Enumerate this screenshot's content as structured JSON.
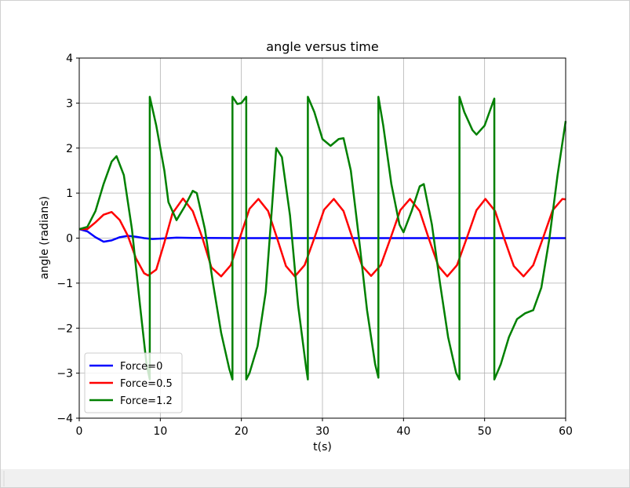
{
  "chart_data": {
    "type": "line",
    "title": "angle versus time",
    "x_label": "t(s)",
    "y_label": "angle (radians)",
    "xlim": [
      0,
      60
    ],
    "xticks": [
      0,
      10,
      20,
      30,
      40,
      50,
      60
    ],
    "ylim": [
      -4,
      4
    ],
    "yticks": [
      {
        "value": -4,
        "label": "−4"
      },
      {
        "value": -3,
        "label": "−3"
      },
      {
        "value": -2,
        "label": "−2"
      },
      {
        "value": -1,
        "label": "−1"
      },
      0,
      1,
      2,
      3,
      4
    ],
    "grid": true,
    "legend": "lower left",
    "series": [
      {
        "name": "Force=0",
        "color": "#0000ff",
        "x": [
          0,
          1,
          2,
          3,
          4,
          5,
          6,
          7,
          8,
          9,
          10,
          12,
          14,
          20,
          40,
          60
        ],
        "values": [
          0.2,
          0.15,
          0.02,
          -0.08,
          -0.05,
          0.02,
          0.05,
          0.03,
          0,
          -0.02,
          -0.01,
          0.01,
          0.005,
          0,
          0,
          0
        ]
      },
      {
        "name": "Force=0.5",
        "color": "#ff0000",
        "x": [
          0,
          1,
          2,
          3,
          4,
          5,
          6,
          7,
          8,
          8.5,
          9.5,
          10.5,
          11.5,
          12.8,
          14,
          15.2,
          16.3,
          17.5,
          18.7,
          19.8,
          21,
          22.1,
          23.3,
          24.4,
          25.5,
          26.6,
          27.8,
          29,
          30.2,
          31.4,
          32.6,
          33.7,
          34.9,
          36,
          37.2,
          38.4,
          39.6,
          40.8,
          42,
          43.1,
          44.3,
          45.4,
          46.6,
          47.8,
          49,
          50.1,
          51.3,
          52.4,
          53.6,
          54.8,
          56,
          57.2,
          58.4,
          59.6,
          60
        ],
        "values": [
          0.2,
          0.2,
          0.35,
          0.52,
          0.58,
          0.4,
          0.05,
          -0.45,
          -0.78,
          -0.83,
          -0.7,
          -0.1,
          0.55,
          0.88,
          0.6,
          0,
          -0.65,
          -0.85,
          -0.6,
          0,
          0.65,
          0.87,
          0.6,
          0,
          -0.62,
          -0.85,
          -0.6,
          0,
          0.63,
          0.87,
          0.6,
          0,
          -0.62,
          -0.84,
          -0.6,
          0,
          0.62,
          0.87,
          0.6,
          0,
          -0.62,
          -0.85,
          -0.6,
          0,
          0.62,
          0.87,
          0.6,
          0,
          -0.62,
          -0.85,
          -0.6,
          0,
          0.62,
          0.87,
          0.86
        ]
      },
      {
        "name": "Force=1.2",
        "color": "#008000",
        "x": [
          0,
          1,
          2,
          3,
          4,
          4.6,
          5.5,
          6.5,
          7.5,
          8.3,
          8.7,
          8.7,
          9.5,
          10.5,
          11,
          12,
          13,
          14,
          14.5,
          15.5,
          16.5,
          17.5,
          18.5,
          18.9,
          18.9,
          19.5,
          20,
          20.6,
          20.6,
          21,
          22,
          23,
          23.7,
          24.3,
          25,
          26,
          27,
          28,
          28.2,
          28.2,
          29,
          30,
          31,
          32,
          32.6,
          33.5,
          34.5,
          35.5,
          36.5,
          36.9,
          36.9,
          37.5,
          38.5,
          39.5,
          40,
          41,
          42,
          42.5,
          43.5,
          44.5,
          45.5,
          46.5,
          46.9,
          46.9,
          47.5,
          48.5,
          49,
          50,
          51,
          51.2,
          51.2,
          52,
          53,
          54,
          55,
          56,
          57,
          58,
          59,
          60
        ],
        "values": [
          0.2,
          0.25,
          0.6,
          1.2,
          1.7,
          1.82,
          1.4,
          0.2,
          -1.5,
          -2.8,
          -3.14,
          3.14,
          2.5,
          1.5,
          0.8,
          0.4,
          0.7,
          1.05,
          1.0,
          0.2,
          -1.0,
          -2.1,
          -2.9,
          -3.14,
          3.14,
          2.98,
          3.0,
          3.14,
          -3.14,
          -3.0,
          -2.4,
          -1.2,
          0.5,
          2.0,
          1.8,
          0.5,
          -1.5,
          -2.9,
          -3.14,
          3.14,
          2.8,
          2.2,
          2.05,
          2.2,
          2.22,
          1.5,
          0,
          -1.6,
          -2.8,
          -3.1,
          3.14,
          2.5,
          1.2,
          0.3,
          0.13,
          0.6,
          1.15,
          1.2,
          0.3,
          -1.0,
          -2.2,
          -3.0,
          -3.14,
          3.14,
          2.8,
          2.4,
          2.3,
          2.5,
          3.0,
          3.1,
          -3.14,
          -2.8,
          -2.2,
          -1.8,
          -1.67,
          -1.6,
          -1.1,
          0,
          1.4,
          2.6
        ]
      }
    ]
  }
}
